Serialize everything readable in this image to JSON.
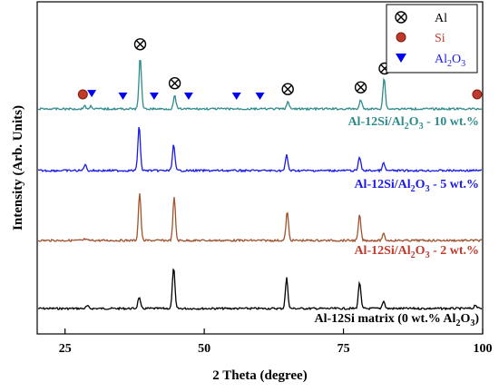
{
  "chart_data": {
    "type": "line",
    "xlabel": "2 Theta (degree)",
    "ylabel": "Intensity (Arb. Units)",
    "xlim": [
      20,
      100
    ],
    "xticks": [
      25,
      50,
      75,
      100
    ],
    "yticks_shown": false,
    "stacked_offset": true,
    "grid": false,
    "legend_position": "top-right",
    "legend": [
      {
        "symbol": "circle-cross",
        "label": "Al",
        "color": "#000000"
      },
      {
        "symbol": "filled-circle",
        "label": "Si",
        "color": "#c0392b"
      },
      {
        "symbol": "triangle-down",
        "label": "Al2O3",
        "color": "#0000ee"
      }
    ],
    "series": [
      {
        "name": "Al-12Si matrix (0 wt.% Al2O3)",
        "color": "#000000",
        "peaks": [
          {
            "x": 29.0,
            "h": 0.04
          },
          {
            "x": 38.3,
            "h": 0.18
          },
          {
            "x": 44.5,
            "h": 0.65
          },
          {
            "x": 64.8,
            "h": 0.48
          },
          {
            "x": 77.9,
            "h": 0.42
          },
          {
            "x": 82.2,
            "h": 0.12
          },
          {
            "x": 98.7,
            "h": 0.06
          }
        ]
      },
      {
        "name": "Al-12Si/Al2O3 - 2 wt.%",
        "color": "#a0522d",
        "peaks": [
          {
            "x": 28.6,
            "h": 0.02
          },
          {
            "x": 38.4,
            "h": 0.75
          },
          {
            "x": 44.6,
            "h": 0.68
          },
          {
            "x": 64.9,
            "h": 0.45
          },
          {
            "x": 77.9,
            "h": 0.4
          },
          {
            "x": 82.2,
            "h": 0.1
          }
        ]
      },
      {
        "name": "Al-12Si/Al2O3 - 5 wt.%",
        "color": "#1a1ae6",
        "peaks": [
          {
            "x": 28.6,
            "h": 0.1
          },
          {
            "x": 38.3,
            "h": 0.72
          },
          {
            "x": 44.5,
            "h": 0.42
          },
          {
            "x": 64.8,
            "h": 0.25
          },
          {
            "x": 77.9,
            "h": 0.22
          },
          {
            "x": 82.2,
            "h": 0.12
          }
        ]
      },
      {
        "name": "Al-12Si/Al2O3 - 10 wt.%",
        "color": "#2e8b8b",
        "peaks": [
          {
            "x": 28.5,
            "h": 0.05
          },
          {
            "x": 29.7,
            "h": 0.05
          },
          {
            "x": 38.5,
            "h": 0.88
          },
          {
            "x": 44.7,
            "h": 0.22
          },
          {
            "x": 65.0,
            "h": 0.12
          },
          {
            "x": 78.1,
            "h": 0.15
          },
          {
            "x": 82.3,
            "h": 0.52
          }
        ]
      }
    ],
    "markers": [
      {
        "type": "Si",
        "x": 28.2
      },
      {
        "type": "Al2O3",
        "x": 29.8
      },
      {
        "type": "Al2O3",
        "x": 35.4
      },
      {
        "type": "Al",
        "x": 38.5
      },
      {
        "type": "Al2O3",
        "x": 41.0
      },
      {
        "type": "Al",
        "x": 44.7
      },
      {
        "type": "Al2O3",
        "x": 47.2
      },
      {
        "type": "Al2O3",
        "x": 55.8
      },
      {
        "type": "Al2O3",
        "x": 60.0
      },
      {
        "type": "Al",
        "x": 65.0
      },
      {
        "type": "Al",
        "x": 78.1
      },
      {
        "type": "Al",
        "x": 82.4
      },
      {
        "type": "Si",
        "x": 99.0
      }
    ]
  }
}
